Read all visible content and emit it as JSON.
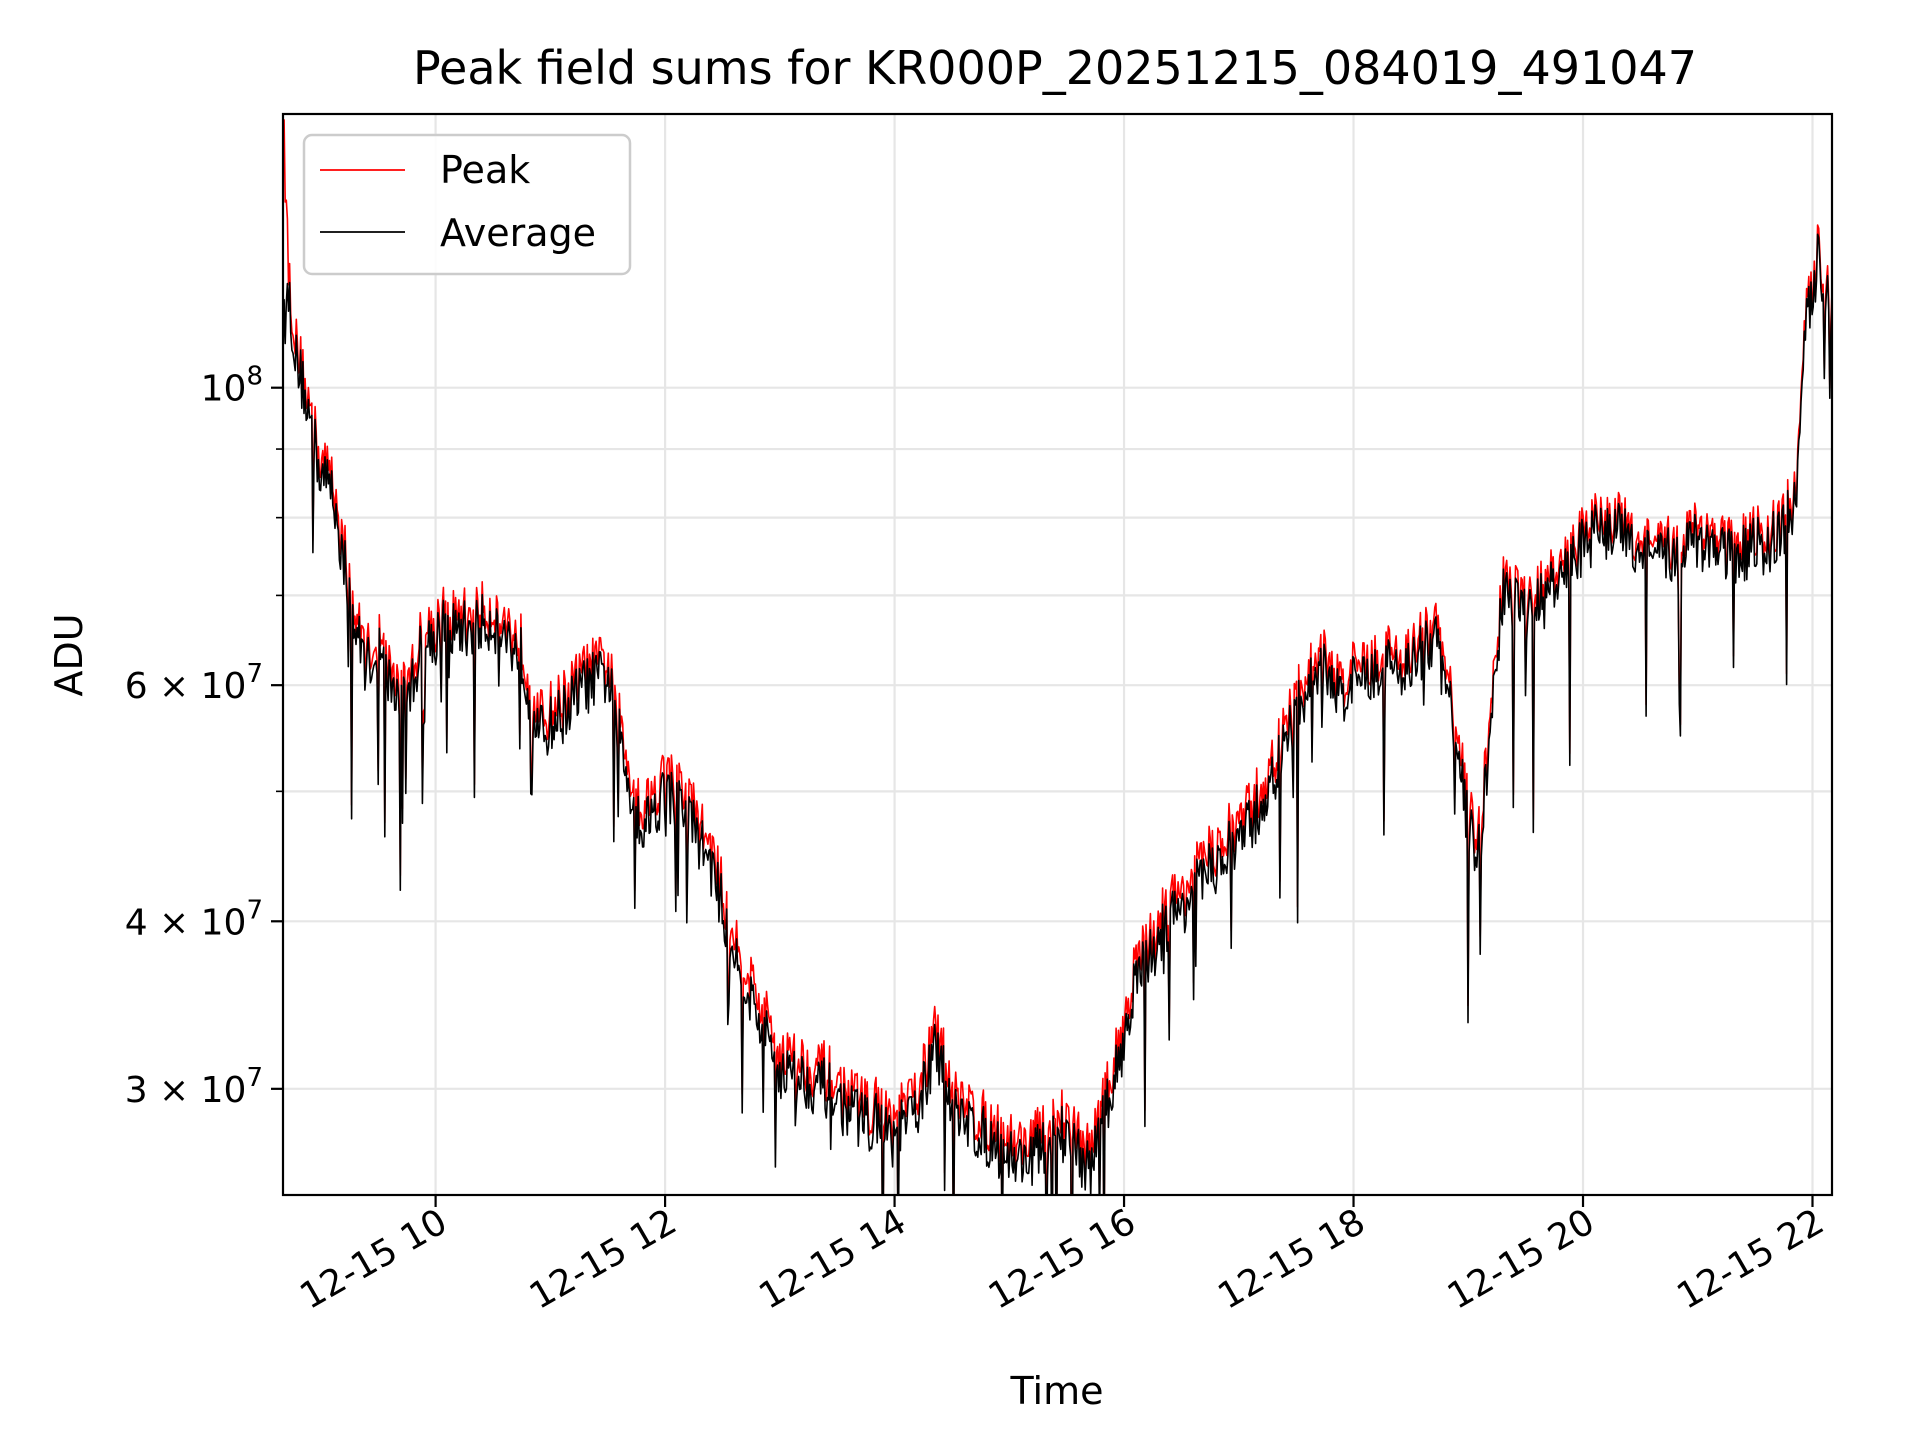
{
  "chart_data": {
    "type": "line",
    "title": "Peak field sums for KR000P_20251215_084019_491047",
    "xlabel": "Time",
    "ylabel": "ADU",
    "yscale": "log",
    "ylim": [
      25000000,
      160000000
    ],
    "xlim_hours": [
      8.67,
      22.17
    ],
    "grid": true,
    "legend_position": "top-left",
    "x_ticks": [
      {
        "hour": 10,
        "label": "12-15 10"
      },
      {
        "hour": 12,
        "label": "12-15 12"
      },
      {
        "hour": 14,
        "label": "12-15 14"
      },
      {
        "hour": 16,
        "label": "12-15 16"
      },
      {
        "hour": 18,
        "label": "12-15 18"
      },
      {
        "hour": 20,
        "label": "12-15 20"
      },
      {
        "hour": 22,
        "label": "12-15 22"
      }
    ],
    "y_major_ticks": [
      {
        "value": 100000000,
        "base": "10",
        "exp": "8"
      },
      {
        "value": 60000000,
        "base": "6 × 10",
        "exp": "7"
      },
      {
        "value": 40000000,
        "base": "4 × 10",
        "exp": "7"
      },
      {
        "value": 30000000,
        "base": "3 × 10",
        "exp": "7"
      }
    ],
    "y_minor_ticks": [
      90000000,
      80000000,
      70000000,
      50000000
    ],
    "series": [
      {
        "name": "Peak",
        "color": "#ff0000"
      },
      {
        "name": "Average",
        "color": "#000000"
      }
    ],
    "x_hours": [
      8.67,
      8.72,
      8.78,
      8.85,
      9.0,
      9.1,
      9.2,
      9.3,
      9.4,
      9.5,
      9.6,
      9.75,
      9.85,
      10.0,
      10.25,
      10.5,
      10.75,
      10.9,
      11.1,
      11.3,
      11.5,
      11.65,
      11.8,
      12.0,
      12.2,
      12.4,
      12.6,
      12.8,
      13.0,
      13.2,
      13.4,
      13.6,
      13.8,
      14.0,
      14.2,
      14.35,
      14.5,
      14.7,
      14.9,
      15.1,
      15.3,
      15.5,
      15.7,
      15.9,
      16.1,
      16.3,
      16.5,
      16.7,
      16.9,
      17.1,
      17.3,
      17.5,
      17.7,
      17.9,
      18.1,
      18.3,
      18.5,
      18.7,
      18.85,
      19.0,
      19.1,
      19.3,
      19.5,
      19.7,
      19.9,
      20.1,
      20.3,
      20.5,
      20.7,
      20.9,
      21.1,
      21.3,
      21.5,
      21.7,
      21.85,
      21.95,
      22.05,
      22.17
    ],
    "average_values": [
      110000000,
      118000000,
      105000000,
      100000000,
      86000000,
      84000000,
      74000000,
      66000000,
      62000000,
      64000000,
      60000000,
      58000000,
      63000000,
      66000000,
      66000000,
      67000000,
      63000000,
      55000000,
      57000000,
      60000000,
      61000000,
      52000000,
      47000000,
      50000000,
      48000000,
      44000000,
      38000000,
      34000000,
      31000000,
      30500000,
      30000000,
      28800000,
      28500000,
      27500000,
      29000000,
      32000000,
      29500000,
      28000000,
      27000000,
      26500000,
      27000000,
      28000000,
      26000000,
      30000000,
      36000000,
      39000000,
      41000000,
      43000000,
      45000000,
      47000000,
      51000000,
      57000000,
      62000000,
      59000000,
      61000000,
      62000000,
      62000000,
      65000000,
      58000000,
      47000000,
      45000000,
      70000000,
      68000000,
      70000000,
      74000000,
      78000000,
      78000000,
      76000000,
      74000000,
      77000000,
      76000000,
      75000000,
      76000000,
      77000000,
      82000000,
      112000000,
      125000000,
      112000000
    ],
    "peak_values": [
      160000000,
      122000000,
      108000000,
      102000000,
      88000000,
      86000000,
      76000000,
      67500000,
      63500000,
      65500000,
      61500000,
      59500000,
      64500000,
      67500000,
      67500000,
      68500000,
      64500000,
      56500000,
      58500000,
      61500000,
      62500000,
      53500000,
      48500000,
      51500000,
      49500000,
      45200000,
      39200000,
      35200000,
      32000000,
      31400000,
      30900000,
      29600000,
      29300000,
      28300000,
      29900000,
      33000000,
      30400000,
      28800000,
      27800000,
      27300000,
      27800000,
      28800000,
      26800000,
      30900000,
      37000000,
      40100000,
      42200000,
      44300000,
      46400000,
      48400000,
      52500000,
      58600000,
      63500000,
      60500000,
      62500000,
      63500000,
      63500000,
      66500000,
      59500000,
      48400000,
      46400000,
      71500000,
      69500000,
      71500000,
      75500000,
      79500000,
      79500000,
      77500000,
      75500000,
      78500000,
      77500000,
      76500000,
      77500000,
      78500000,
      83500000,
      114000000,
      127000000,
      114000000
    ]
  }
}
